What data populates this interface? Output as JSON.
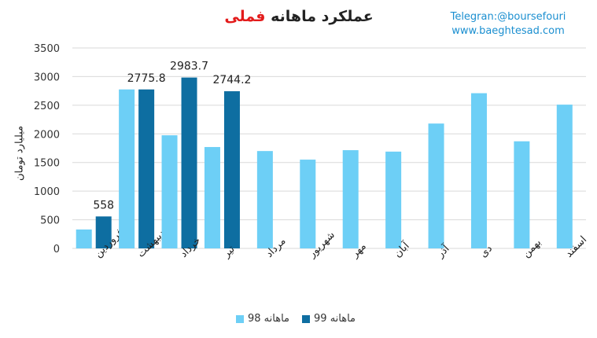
{
  "header": {
    "title_prefix": "عملکرد ماهانه",
    "title_symbol": "فملی",
    "telegram": "Telegran:@boursefouri",
    "website": "www.baeghtesad.com"
  },
  "colors": {
    "series_98": "#6dcff6",
    "series_99": "#0e6ea1",
    "grid": "#d9d9d9",
    "accent_title": "#e31b1b",
    "watermark": "#1b8fd0"
  },
  "chart_data": {
    "type": "bar",
    "title": "عملکرد ماهانه فملی",
    "ylabel": "میلیارد تومان",
    "xlabel": "",
    "ylim": [
      0,
      3500
    ],
    "yticks": [
      0,
      500,
      1000,
      1500,
      2000,
      2500,
      3000,
      3500
    ],
    "grid": true,
    "legend_position": "bottom",
    "categories": [
      "فروردین",
      "اردیبهشت",
      "خرداد",
      "تیر",
      "مرداد",
      "شهریور",
      "مهر",
      "آبان",
      "آذر",
      "دی",
      "بهمن",
      "اسفند"
    ],
    "series": [
      {
        "name": "ماهانه 98",
        "color": "#6dcff6",
        "values": [
          330,
          2775.8,
          1975,
          1770,
          1700,
          1550,
          1715,
          1690,
          2180,
          2710,
          1870,
          2510
        ],
        "labels": [
          "",
          "",
          "",
          "",
          "",
          "",
          "",
          "",
          "",
          "",
          "",
          ""
        ]
      },
      {
        "name": "ماهانه 99",
        "color": "#0e6ea1",
        "values": [
          558,
          2775.8,
          2983.7,
          2744.2,
          null,
          null,
          null,
          null,
          null,
          null,
          null,
          null
        ],
        "labels": [
          "558",
          "2775.8",
          "2983.7",
          "2744.2",
          "",
          "",
          "",
          "",
          "",
          "",
          "",
          ""
        ]
      }
    ]
  }
}
